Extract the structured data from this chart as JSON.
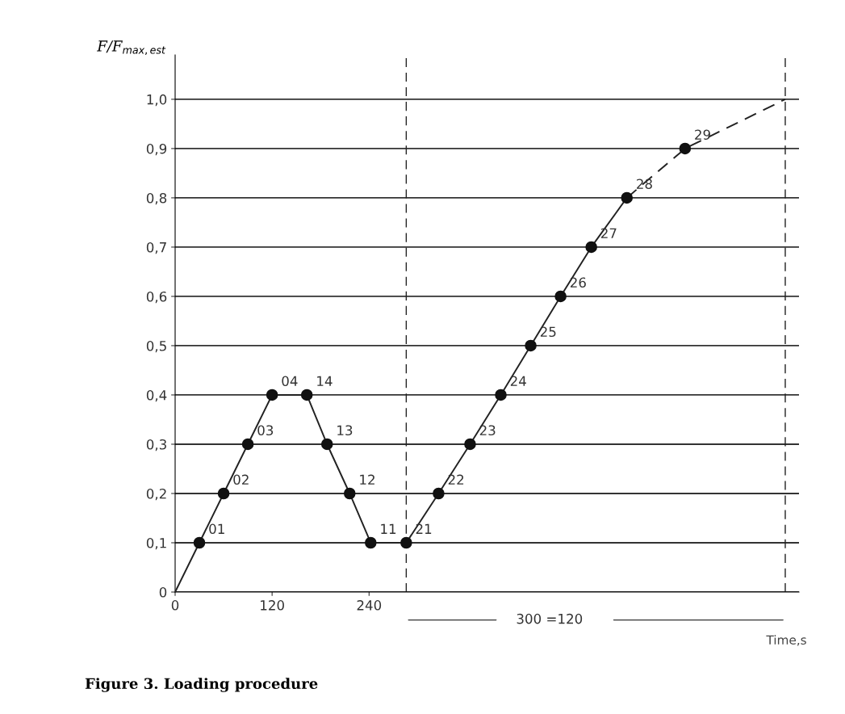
{
  "chart_data": {
    "type": "line",
    "xlabel": "Time,s",
    "ylabel": "F/F$_{max,est}$",
    "xlim": [
      0,
      772
    ],
    "ylim": [
      0,
      1.09
    ],
    "xticks": [
      0,
      120,
      240
    ],
    "yticks": [
      {
        "value": 0,
        "label": "0"
      },
      {
        "value": 0.1,
        "label": "0,1"
      },
      {
        "value": 0.2,
        "label": "0,2"
      },
      {
        "value": 0.3,
        "label": "0,3"
      },
      {
        "value": 0.4,
        "label": "0,4"
      },
      {
        "value": 0.5,
        "label": "0,5"
      },
      {
        "value": 0.6,
        "label": "0,6"
      },
      {
        "value": 0.7,
        "label": "0,7"
      },
      {
        "value": 0.8,
        "label": "0,8"
      },
      {
        "value": 0.9,
        "label": "0,9"
      },
      {
        "value": 1.0,
        "label": "1,0"
      }
    ],
    "grid": "y",
    "series": [
      {
        "color": "#222222",
        "line_style": "solid",
        "marker": "none",
        "x": [
          0,
          30,
          60,
          90,
          120,
          163,
          188,
          216,
          242,
          286,
          326,
          365,
          403,
          440,
          477,
          515,
          559
        ],
        "values": [
          0,
          0.1,
          0.2,
          0.3,
          0.4,
          0.4,
          0.3,
          0.2,
          0.1,
          0.1,
          0.2,
          0.3,
          0.4,
          0.5,
          0.6,
          0.7,
          0.8
        ]
      },
      {
        "type": "line",
        "color": "#222222",
        "line_style": "dashed",
        "marker": "none",
        "x": [
          559,
          631,
          755
        ],
        "values": [
          0.8,
          0.9,
          1.0
        ]
      },
      {
        "type": "scatter",
        "color": "#111111",
        "marker": "circle",
        "x": [
          30,
          60,
          90,
          120,
          163,
          188,
          216,
          242,
          286,
          326,
          365,
          403,
          440,
          477,
          515,
          559,
          631
        ],
        "values": [
          0.1,
          0.2,
          0.3,
          0.4,
          0.4,
          0.3,
          0.2,
          0.1,
          0.1,
          0.2,
          0.3,
          0.4,
          0.5,
          0.6,
          0.7,
          0.8,
          0.9
        ]
      }
    ],
    "ref_lines": [
      {
        "axis": "x",
        "value": 286,
        "line_style": "dashed",
        "color": "#222222"
      },
      {
        "axis": "x",
        "value": 755,
        "line_style": "dashed",
        "color": "#222222"
      }
    ],
    "annotations": [
      {
        "text": "01",
        "x": 30,
        "y": 0.1
      },
      {
        "text": "02",
        "x": 60,
        "y": 0.2
      },
      {
        "text": "03",
        "x": 90,
        "y": 0.3
      },
      {
        "text": "04",
        "x": 120,
        "y": 0.4
      },
      {
        "text": "14",
        "x": 163,
        "y": 0.4
      },
      {
        "text": "13",
        "x": 188,
        "y": 0.3
      },
      {
        "text": "12",
        "x": 216,
        "y": 0.2
      },
      {
        "text": "11",
        "x": 242,
        "y": 0.1
      },
      {
        "text": "21",
        "x": 286,
        "y": 0.1
      },
      {
        "text": "22",
        "x": 326,
        "y": 0.2
      },
      {
        "text": "23",
        "x": 365,
        "y": 0.3
      },
      {
        "text": "24",
        "x": 403,
        "y": 0.4
      },
      {
        "text": "25",
        "x": 440,
        "y": 0.5
      },
      {
        "text": "26",
        "x": 477,
        "y": 0.6
      },
      {
        "text": "27",
        "x": 515,
        "y": 0.7
      },
      {
        "text": "28",
        "x": 559,
        "y": 0.8
      },
      {
        "text": "29",
        "x": 631,
        "y": 0.9
      },
      "300 =120",
      "Figure 3. Loading procedure"
    ]
  }
}
